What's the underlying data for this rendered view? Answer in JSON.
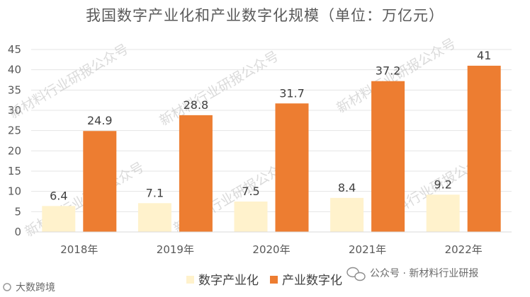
{
  "chart_data": {
    "type": "bar",
    "title": "我国数字产业化和产业数字化规模（单位：万亿元）",
    "categories": [
      "2018年",
      "2019年",
      "2020年",
      "2021年",
      "2022年"
    ],
    "series": [
      {
        "name": "数字产业化",
        "values": [
          6.4,
          7.1,
          7.5,
          8.4,
          9.2
        ],
        "color": "#fff2cc"
      },
      {
        "name": "产业数字化",
        "values": [
          24.9,
          28.8,
          31.7,
          37.2,
          41
        ],
        "color": "#ed7d31"
      }
    ],
    "data_labels": [
      [
        "6.4",
        "7.1",
        "7.5",
        "8.4",
        "9.2"
      ],
      [
        "24.9",
        "28.8",
        "31.7",
        "37.2",
        "41"
      ]
    ],
    "ylim": [
      0,
      45
    ],
    "yticks": [
      "0",
      "5",
      "10",
      "15",
      "20",
      "25",
      "30",
      "35",
      "40",
      "45"
    ],
    "xlabel": "",
    "ylabel": "",
    "grid": true,
    "legend_position": "bottom"
  },
  "watermark_text": "新材料行业研报公众号",
  "footer": {
    "left_logo_text": "大数跨境",
    "right_text": "公众号 · 新材料行业研报"
  }
}
